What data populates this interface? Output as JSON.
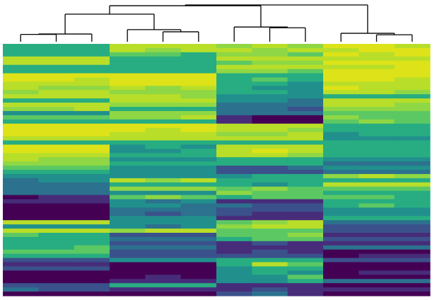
{
  "chart_data": {
    "type": "heatmap",
    "colormap": "viridis",
    "value_range": [
      0,
      9
    ],
    "palette": [
      "#440154",
      "#472c7a",
      "#3b518b",
      "#2c718e",
      "#21908d",
      "#27ad81",
      "#5cc863",
      "#8fd744",
      "#b8de29",
      "#dde318"
    ],
    "dendrogram_color": "#000000",
    "n_columns": 12,
    "column_clusters": [
      [
        0,
        1,
        2
      ],
      [
        3,
        4,
        5
      ],
      [
        6,
        7,
        8
      ],
      [
        9,
        10,
        11
      ]
    ],
    "linkage": [
      [
        0,
        1,
        0.2
      ],
      [
        12,
        2,
        0.21
      ],
      [
        4,
        5,
        0.27
      ],
      [
        3,
        14,
        0.33
      ],
      [
        13,
        15,
        0.75
      ],
      [
        7,
        8,
        0.38
      ],
      [
        6,
        17,
        0.4
      ],
      [
        10,
        11,
        0.19
      ],
      [
        9,
        19,
        0.23
      ],
      [
        16,
        18,
        0.98
      ],
      [
        21,
        20,
        1.0
      ]
    ],
    "rows": [
      [
        5,
        5,
        5,
        8,
        8,
        8,
        7,
        8,
        7,
        9,
        9,
        8
      ],
      [
        5,
        5,
        5,
        8,
        7,
        8,
        8,
        7,
        8,
        8,
        9,
        9
      ],
      [
        5,
        5,
        5,
        6,
        6,
        5,
        7,
        7,
        6,
        9,
        8,
        9
      ],
      [
        8,
        8,
        8,
        5,
        5,
        5,
        8,
        8,
        8,
        8,
        8,
        8
      ],
      [
        8,
        8,
        8,
        5,
        5,
        5,
        6,
        7,
        7,
        9,
        9,
        9
      ],
      [
        5,
        5,
        5,
        5,
        5,
        5,
        8,
        8,
        8,
        8,
        8,
        9
      ],
      [
        5,
        5,
        5,
        5,
        5,
        5,
        7,
        7,
        6,
        9,
        9,
        9
      ],
      [
        9,
        9,
        9,
        9,
        9,
        9,
        5,
        5,
        5,
        9,
        9,
        9
      ],
      [
        9,
        9,
        8,
        9,
        9,
        9,
        5,
        6,
        5,
        9,
        9,
        8
      ],
      [
        8,
        8,
        8,
        9,
        9,
        9,
        5,
        5,
        4,
        8,
        8,
        8
      ],
      [
        8,
        7,
        7,
        8,
        7,
        8,
        5,
        4,
        4,
        9,
        8,
        8
      ],
      [
        7,
        8,
        8,
        7,
        7,
        7,
        5,
        5,
        4,
        8,
        8,
        7
      ],
      [
        8,
        8,
        8,
        8,
        8,
        7,
        4,
        4,
        4,
        5,
        5,
        5
      ],
      [
        5,
        5,
        5,
        8,
        8,
        8,
        4,
        4,
        3,
        8,
        8,
        8
      ],
      [
        8,
        8,
        8,
        7,
        7,
        7,
        3,
        3,
        3,
        8,
        8,
        7
      ],
      [
        7,
        7,
        8,
        5,
        5,
        5,
        3,
        3,
        2,
        7,
        7,
        7
      ],
      [
        4,
        4,
        4,
        7,
        7,
        7,
        3,
        3,
        3,
        6,
        6,
        6
      ],
      [
        6,
        6,
        6,
        7,
        7,
        8,
        1,
        0,
        0,
        7,
        6,
        6
      ],
      [
        5,
        5,
        5,
        5,
        5,
        5,
        1,
        0,
        0,
        6,
        7,
        6
      ],
      [
        9,
        9,
        9,
        9,
        9,
        9,
        8,
        8,
        8,
        5,
        5,
        5
      ],
      [
        9,
        9,
        9,
        9,
        8,
        9,
        8,
        8,
        7,
        5,
        5,
        5
      ],
      [
        9,
        9,
        9,
        8,
        8,
        8,
        7,
        7,
        8,
        4,
        5,
        5
      ],
      [
        8,
        8,
        8,
        8,
        8,
        8,
        8,
        8,
        8,
        4,
        4,
        4
      ],
      [
        5,
        5,
        5,
        5,
        5,
        5,
        5,
        5,
        5,
        5,
        5,
        5
      ],
      [
        9,
        9,
        9,
        4,
        5,
        4,
        8,
        8,
        8,
        5,
        5,
        5
      ],
      [
        9,
        9,
        9,
        4,
        4,
        5,
        8,
        9,
        8,
        5,
        5,
        5
      ],
      [
        8,
        8,
        8,
        5,
        5,
        5,
        8,
        8,
        7,
        5,
        5,
        5
      ],
      [
        8,
        7,
        7,
        4,
        4,
        4,
        5,
        5,
        5,
        4,
        4,
        4
      ],
      [
        7,
        7,
        7,
        5,
        5,
        5,
        5,
        5,
        5,
        3,
        3,
        3
      ],
      [
        6,
        6,
        6,
        4,
        4,
        4,
        2,
        2,
        3,
        4,
        4,
        4
      ],
      [
        5,
        5,
        5,
        4,
        4,
        4,
        2,
        2,
        2,
        3,
        3,
        3
      ],
      [
        4,
        4,
        4,
        4,
        4,
        4,
        4,
        5,
        5,
        7,
        8,
        7
      ],
      [
        3,
        4,
        4,
        8,
        7,
        8,
        5,
        5,
        5,
        5,
        5,
        5
      ],
      [
        3,
        3,
        3,
        5,
        5,
        5,
        5,
        4,
        5,
        8,
        8,
        8
      ],
      [
        3,
        3,
        3,
        7,
        7,
        7,
        6,
        7,
        6,
        6,
        6,
        6
      ],
      [
        3,
        3,
        3,
        4,
        4,
        4,
        7,
        6,
        6,
        5,
        5,
        5
      ],
      [
        0,
        1,
        1,
        6,
        7,
        6,
        5,
        6,
        6,
        6,
        6,
        5
      ],
      [
        1,
        1,
        1,
        4,
        3,
        4,
        1,
        1,
        1,
        5,
        5,
        5
      ],
      [
        0,
        0,
        0,
        4,
        4,
        3,
        3,
        2,
        2,
        5,
        6,
        5
      ],
      [
        0,
        0,
        0,
        3,
        3,
        3,
        2,
        2,
        2,
        4,
        4,
        4
      ],
      [
        0,
        0,
        0,
        3,
        2,
        3,
        2,
        1,
        1,
        4,
        4,
        4
      ],
      [
        0,
        0,
        0,
        4,
        4,
        4,
        1,
        1,
        1,
        5,
        5,
        5
      ],
      [
        8,
        8,
        8,
        4,
        4,
        4,
        6,
        7,
        8,
        3,
        3,
        3
      ],
      [
        4,
        4,
        4,
        4,
        3,
        4,
        7,
        8,
        8,
        2,
        2,
        2
      ],
      [
        8,
        8,
        8,
        7,
        8,
        8,
        6,
        6,
        6,
        2,
        2,
        2
      ],
      [
        6,
        5,
        5,
        2,
        2,
        2,
        6,
        6,
        7,
        1,
        1,
        1
      ],
      [
        5,
        5,
        5,
        3,
        3,
        3,
        5,
        6,
        6,
        2,
        2,
        2
      ],
      [
        5,
        5,
        5,
        2,
        2,
        2,
        1,
        2,
        1,
        1,
        1,
        1
      ],
      [
        5,
        5,
        6,
        3,
        3,
        3,
        1,
        1,
        1,
        3,
        3,
        3
      ],
      [
        6,
        6,
        6,
        2,
        2,
        2,
        1,
        2,
        1,
        0,
        0,
        0
      ],
      [
        5,
        5,
        5,
        2,
        2,
        2,
        2,
        2,
        2,
        0,
        1,
        1
      ],
      [
        2,
        2,
        2,
        4,
        4,
        4,
        5,
        5,
        5,
        2,
        2,
        2
      ],
      [
        1,
        1,
        1,
        0,
        0,
        0,
        5,
        8,
        6,
        0,
        0,
        0
      ],
      [
        2,
        2,
        2,
        0,
        0,
        0,
        4,
        5,
        5,
        0,
        0,
        0
      ],
      [
        0,
        0,
        0,
        0,
        0,
        0,
        4,
        5,
        4,
        0,
        1,
        1
      ],
      [
        0,
        0,
        0,
        0,
        1,
        0,
        4,
        4,
        6,
        0,
        0,
        0
      ],
      [
        0,
        0,
        0,
        1,
        1,
        1,
        4,
        4,
        5,
        3,
        3,
        3
      ],
      [
        2,
        2,
        2,
        5,
        5,
        5,
        1,
        1,
        1,
        0,
        0,
        0
      ],
      [
        3,
        2,
        2,
        1,
        1,
        1,
        1,
        2,
        1,
        1,
        1,
        1
      ],
      [
        0,
        0,
        0,
        0,
        0,
        0,
        2,
        3,
        1,
        0,
        0,
        0
      ]
    ]
  }
}
